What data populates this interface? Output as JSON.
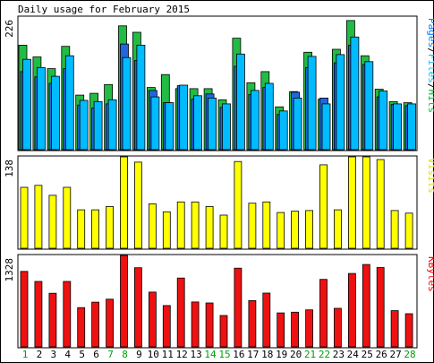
{
  "chart_data": {
    "type": "bar",
    "title": "Daily usage for February 2015",
    "categories": [
      "1",
      "2",
      "3",
      "4",
      "5",
      "6",
      "7",
      "8",
      "9",
      "10",
      "11",
      "12",
      "13",
      "14",
      "15",
      "16",
      "17",
      "18",
      "19",
      "20",
      "21",
      "22",
      "23",
      "24",
      "25",
      "26",
      "27",
      "28"
    ],
    "weekend_days": [
      "1",
      "7",
      "8",
      "14",
      "15",
      "21",
      "22",
      "28"
    ],
    "panels": [
      {
        "name": "hits-files-pages",
        "ymax_label": "226",
        "ylim": [
          0,
          226
        ],
        "legend": [
          {
            "text": "Pages",
            "color": "#0080ff"
          },
          {
            "text": "/",
            "color": "#000000"
          },
          {
            "text": "Files",
            "color": "#00c0ff"
          },
          {
            "text": "/",
            "color": "#000000"
          },
          {
            "text": "Hits",
            "color": "#00c030"
          }
        ],
        "series": [
          {
            "name": "Hits",
            "color": "#22bb44",
            "values": [
              178,
              158,
              138,
              176,
              93,
              96,
              111,
              211,
              200,
              106,
              128,
              104,
              104,
              104,
              85,
              190,
              114,
              133,
              73,
              99,
              166,
              86,
              171,
              220,
              160,
              103,
              82,
              80
            ]
          },
          {
            "name": "Files",
            "color": "#00bbff",
            "values": [
              154,
              140,
              125,
              160,
              84,
              82,
              85,
              157,
              178,
              90,
              80,
              110,
              92,
              88,
              78,
              163,
              101,
              113,
              66,
              88,
              159,
              78,
              162,
              192,
              150,
              100,
              78,
              78
            ]
          },
          {
            "name": "Pages",
            "color": "#2266dd",
            "values": [
              133,
              124,
              113,
              138,
              76,
              71,
              78,
              180,
              152,
              101,
              80,
              109,
              86,
              95,
              72,
              142,
              94,
              106,
              60,
              98,
              140,
              88,
              148,
              178,
              145,
              90,
              77,
              75
            ]
          }
        ]
      },
      {
        "name": "visits",
        "ymax_label": "138",
        "ylim": [
          0,
          138
        ],
        "legend": [
          {
            "text": "Visits",
            "color": "#e0e000"
          }
        ],
        "series": [
          {
            "name": "Visits",
            "color": "#ffff00",
            "values": [
              92,
              95,
              80,
              92,
              58,
              58,
              63,
              138,
              130,
              67,
              55,
              70,
              70,
              63,
              50,
              131,
              68,
              70,
              54,
              56,
              57,
              126,
              58,
              138,
              138,
              134,
              57,
              53
            ]
          }
        ]
      },
      {
        "name": "kbytes",
        "ymax_label": "1328",
        "ylim": [
          0,
          1328
        ],
        "legend": [
          {
            "text": "KBytes",
            "color": "#ff0000"
          }
        ],
        "series": [
          {
            "name": "KBytes",
            "color": "#ee1111",
            "values": [
              1096,
              950,
              778,
              950,
              570,
              650,
              693,
              1328,
              1150,
              795,
              600,
              1000,
              652,
              638,
              456,
              1143,
              672,
              781,
              494,
              504,
              538,
              980,
              560,
              1066,
              1197,
              1152,
              526,
              482
            ]
          }
        ]
      }
    ]
  }
}
